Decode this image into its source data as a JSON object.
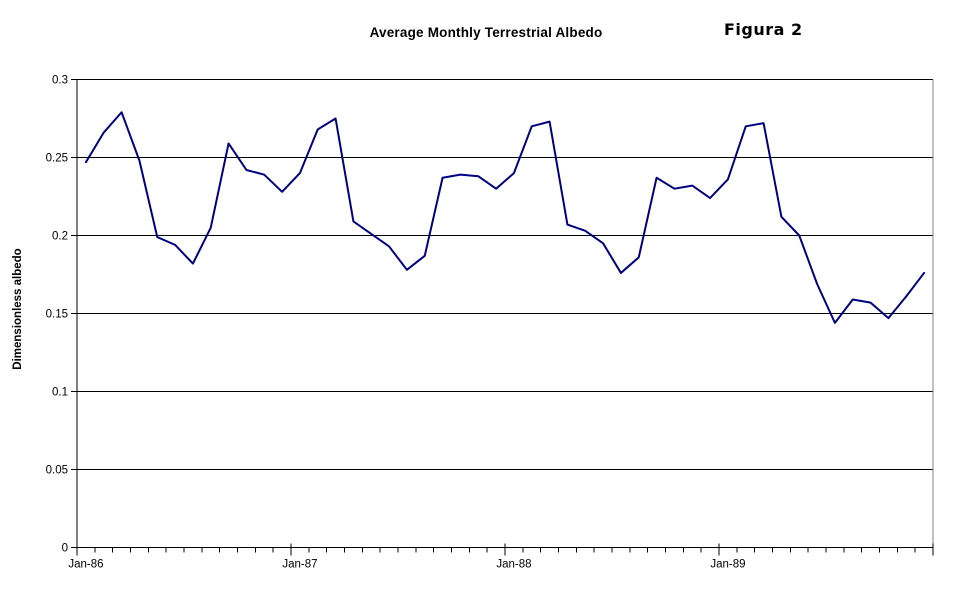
{
  "chart_data": {
    "type": "line",
    "title": "Average Monthly Terrestrial Albedo",
    "annotation": "Figura 2",
    "ylabel": "Dimensionless albedo",
    "xlabel": "",
    "ylim": [
      0,
      0.3
    ],
    "y_ticks": [
      0,
      0.05,
      0.1,
      0.15,
      0.2,
      0.25,
      0.3
    ],
    "y_tick_labels": [
      "0",
      "0.05",
      "0.1",
      "0.15",
      "0.2",
      "0.25",
      "0.3"
    ],
    "x_tick_labels": [
      "Jan-86",
      "Jan-87",
      "Jan-88",
      "Jan-89"
    ],
    "months_per_x_label": 12,
    "grid": true,
    "legend_position": "none",
    "line_color": "#000080",
    "gridline_color": "#000000",
    "right_border_color": "#808080",
    "categories": [
      "Jan-86",
      "Feb-86",
      "Mar-86",
      "Apr-86",
      "May-86",
      "Jun-86",
      "Jul-86",
      "Aug-86",
      "Sep-86",
      "Oct-86",
      "Nov-86",
      "Dec-86",
      "Jan-87",
      "Feb-87",
      "Mar-87",
      "Apr-87",
      "May-87",
      "Jun-87",
      "Jul-87",
      "Aug-87",
      "Sep-87",
      "Oct-87",
      "Nov-87",
      "Dec-87",
      "Jan-88",
      "Feb-88",
      "Mar-88",
      "Apr-88",
      "May-88",
      "Jun-88",
      "Jul-88",
      "Aug-88",
      "Sep-88",
      "Oct-88",
      "Nov-88",
      "Dec-88",
      "Jan-89",
      "Feb-89",
      "Mar-89",
      "Apr-89",
      "May-89",
      "Jun-89",
      "Jul-89",
      "Aug-89",
      "Sep-89",
      "Oct-89",
      "Nov-89",
      "Dec-89"
    ],
    "values": [
      0.247,
      0.266,
      0.279,
      0.248,
      0.199,
      0.194,
      0.182,
      0.205,
      0.259,
      0.242,
      0.239,
      0.228,
      0.24,
      0.268,
      0.275,
      0.209,
      0.201,
      0.193,
      0.178,
      0.187,
      0.237,
      0.239,
      0.238,
      0.23,
      0.24,
      0.27,
      0.273,
      0.207,
      0.203,
      0.195,
      0.176,
      0.186,
      0.237,
      0.23,
      0.232,
      0.224,
      0.236,
      0.27,
      0.272,
      0.212,
      0.2,
      0.169,
      0.144,
      0.159,
      0.157,
      0.147,
      0.161,
      0.176
    ]
  }
}
